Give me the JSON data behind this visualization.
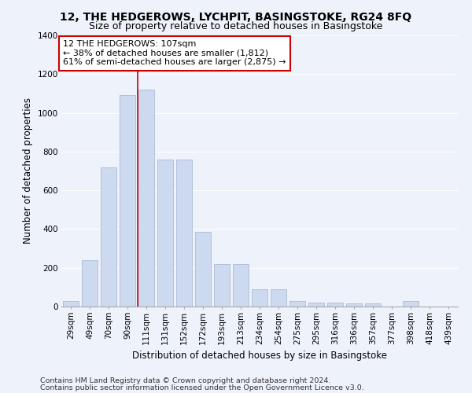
{
  "title": "12, THE HEDGEROWS, LYCHPIT, BASINGSTOKE, RG24 8FQ",
  "subtitle": "Size of property relative to detached houses in Basingstoke",
  "xlabel": "Distribution of detached houses by size in Basingstoke",
  "ylabel": "Number of detached properties",
  "categories": [
    "29sqm",
    "49sqm",
    "70sqm",
    "90sqm",
    "111sqm",
    "131sqm",
    "152sqm",
    "172sqm",
    "193sqm",
    "213sqm",
    "234sqm",
    "254sqm",
    "275sqm",
    "295sqm",
    "316sqm",
    "336sqm",
    "357sqm",
    "377sqm",
    "398sqm",
    "418sqm",
    "439sqm"
  ],
  "values": [
    30,
    240,
    720,
    1090,
    1120,
    760,
    760,
    385,
    220,
    220,
    90,
    90,
    30,
    20,
    20,
    15,
    15,
    0,
    30,
    0,
    0
  ],
  "bar_color": "#ccd9ee",
  "bar_edge_color": "#aabbd8",
  "vline_x_idx": 3.55,
  "annotation_text": "12 THE HEDGEROWS: 107sqm\n← 38% of detached houses are smaller (1,812)\n61% of semi-detached houses are larger (2,875) →",
  "annotation_box_color": "#ffffff",
  "annotation_box_edge_color": "#cc0000",
  "vline_color": "#cc0000",
  "footer_line1": "Contains HM Land Registry data © Crown copyright and database right 2024.",
  "footer_line2": "Contains public sector information licensed under the Open Government Licence v3.0.",
  "ylim": [
    0,
    1400
  ],
  "yticks": [
    0,
    200,
    400,
    600,
    800,
    1000,
    1200,
    1400
  ],
  "bg_color": "#eef2fb",
  "grid_color": "#ffffff",
  "title_fontsize": 10,
  "subtitle_fontsize": 9,
  "axis_label_fontsize": 8.5,
  "tick_fontsize": 7.5,
  "annotation_fontsize": 8,
  "footer_fontsize": 6.8
}
